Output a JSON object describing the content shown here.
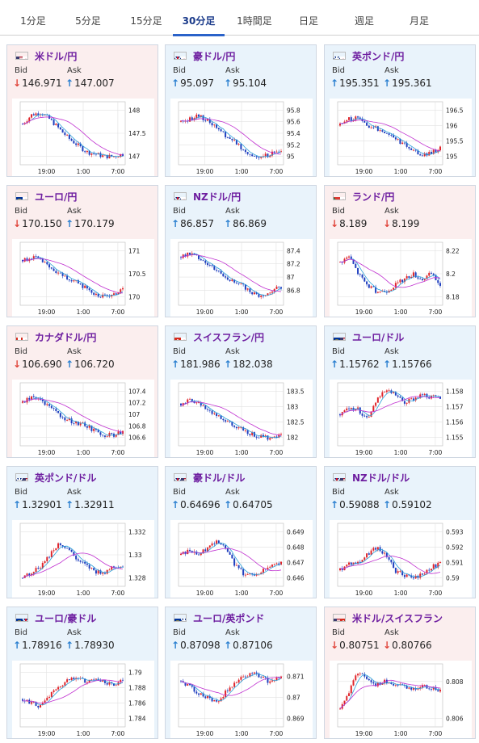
{
  "tabs": [
    {
      "label": "1分足",
      "active": false
    },
    {
      "label": "5分足",
      "active": false
    },
    {
      "label": "15分足",
      "active": false
    },
    {
      "label": "30分足",
      "active": true
    },
    {
      "label": "1時間足",
      "active": false
    },
    {
      "label": "日足",
      "active": false
    },
    {
      "label": "週足",
      "active": false
    },
    {
      "label": "月足",
      "active": false
    }
  ],
  "labels": {
    "bid": "Bid",
    "ask": "Ask"
  },
  "colors": {
    "up_arrow": "#2a7fd0",
    "down_arrow": "#e0443a",
    "pair_name": "#6e1ea0",
    "candle_up": "#e0242a",
    "candle_down": "#1f3fbf",
    "ma_short": "#2a9fd8",
    "ma_long": "#c030d0"
  },
  "x_ticks": [
    "19:00",
    "1:00",
    "7:00"
  ],
  "cards": [
    {
      "pair": "米ドル/円",
      "dir": "down",
      "bid": "146.971",
      "ask": "147.007",
      "bid_trend": "down",
      "ask_trend": "up",
      "flags": [
        "us",
        "jp"
      ],
      "y_ticks": [
        "148",
        "147.5",
        "147"
      ],
      "trend": [
        147.7,
        147.9,
        147.95,
        147.8,
        147.6,
        147.4,
        147.25,
        147.1,
        147.05,
        147.0,
        147.0,
        147.05
      ]
    },
    {
      "pair": "豪ドル/円",
      "dir": "up",
      "bid": "95.097",
      "ask": "95.104",
      "bid_trend": "up",
      "ask_trend": "up",
      "flags": [
        "au",
        "jp"
      ],
      "y_ticks": [
        "95.8",
        "95.6",
        "95.4",
        "95.2",
        "95"
      ],
      "trend": [
        95.6,
        95.65,
        95.7,
        95.6,
        95.5,
        95.35,
        95.25,
        95.1,
        95.0,
        95.0,
        95.05,
        95.1
      ]
    },
    {
      "pair": "英ポンド/円",
      "dir": "up",
      "bid": "195.351",
      "ask": "195.361",
      "bid_trend": "up",
      "ask_trend": "up",
      "flags": [
        "gb",
        "jp"
      ],
      "y_ticks": [
        "196.5",
        "196",
        "195.5",
        "195"
      ],
      "trend": [
        196.0,
        196.2,
        196.25,
        196.0,
        195.9,
        195.8,
        195.6,
        195.4,
        195.2,
        195.05,
        195.1,
        195.3
      ]
    },
    {
      "pair": "ユーロ/円",
      "dir": "down",
      "bid": "170.150",
      "ask": "170.179",
      "bid_trend": "down",
      "ask_trend": "up",
      "flags": [
        "eu",
        "jp"
      ],
      "y_ticks": [
        "171",
        "170.5",
        "170"
      ],
      "trend": [
        170.8,
        170.85,
        170.8,
        170.6,
        170.5,
        170.4,
        170.3,
        170.2,
        170.05,
        170.0,
        170.05,
        170.15
      ]
    },
    {
      "pair": "NZドル/円",
      "dir": "up",
      "bid": "86.857",
      "ask": "86.869",
      "bid_trend": "up",
      "ask_trend": "up",
      "flags": [
        "nz",
        "jp"
      ],
      "y_ticks": [
        "87.4",
        "87.2",
        "87",
        "86.8"
      ],
      "trend": [
        87.3,
        87.35,
        87.3,
        87.2,
        87.1,
        87.0,
        86.9,
        86.85,
        86.75,
        86.7,
        86.8,
        86.85
      ]
    },
    {
      "pair": "ランド/円",
      "dir": "down",
      "bid": "8.189",
      "ask": "8.199",
      "bid_trend": "down",
      "ask_trend": "down",
      "flags": [
        "za",
        "jp"
      ],
      "y_ticks": [
        "8.22",
        "8.2",
        "8.18"
      ],
      "trend": [
        8.21,
        8.215,
        8.2,
        8.19,
        8.185,
        8.185,
        8.19,
        8.195,
        8.2,
        8.195,
        8.2,
        8.19
      ]
    },
    {
      "pair": "カナダドル/円",
      "dir": "down",
      "bid": "106.690",
      "ask": "106.720",
      "bid_trend": "down",
      "ask_trend": "up",
      "flags": [
        "ca",
        "jp"
      ],
      "y_ticks": [
        "107.4",
        "107.2",
        "107",
        "106.8",
        "106.6"
      ],
      "trend": [
        107.2,
        107.3,
        107.25,
        107.1,
        107.0,
        106.9,
        106.85,
        106.8,
        106.7,
        106.65,
        106.65,
        106.7
      ]
    },
    {
      "pair": "スイスフラン/円",
      "dir": "up",
      "bid": "181.986",
      "ask": "182.038",
      "bid_trend": "up",
      "ask_trend": "up",
      "flags": [
        "ch",
        "jp"
      ],
      "y_ticks": [
        "183.5",
        "183",
        "182.5",
        "182"
      ],
      "trend": [
        183.1,
        183.2,
        183.1,
        182.9,
        182.7,
        182.5,
        182.35,
        182.2,
        182.1,
        182.0,
        182.0,
        182.05
      ]
    },
    {
      "pair": "ユーロ/ドル",
      "dir": "up",
      "bid": "1.15762",
      "ask": "1.15766",
      "bid_trend": "up",
      "ask_trend": "up",
      "flags": [
        "eu",
        "us"
      ],
      "y_ticks": [
        "1.158",
        "1.157",
        "1.156",
        "1.155"
      ],
      "trend": [
        1.1565,
        1.157,
        1.1568,
        1.1562,
        1.1575,
        1.158,
        1.1578,
        1.1572,
        1.1575,
        1.1578,
        1.1576,
        1.1576
      ]
    },
    {
      "pair": "英ポンド/ドル",
      "dir": "up",
      "bid": "1.32901",
      "ask": "1.32911",
      "bid_trend": "up",
      "ask_trend": "up",
      "flags": [
        "gb",
        "us"
      ],
      "y_ticks": [
        "1.332",
        "1.33",
        "1.328"
      ],
      "trend": [
        1.328,
        1.3285,
        1.329,
        1.33,
        1.331,
        1.3305,
        1.3295,
        1.329,
        1.3285,
        1.3285,
        1.329,
        1.329
      ]
    },
    {
      "pair": "豪ドル/ドル",
      "dir": "up",
      "bid": "0.64696",
      "ask": "0.64705",
      "bid_trend": "up",
      "ask_trend": "up",
      "flags": [
        "au",
        "us"
      ],
      "y_ticks": [
        "0.649",
        "0.648",
        "0.647",
        "0.646"
      ],
      "trend": [
        0.6475,
        0.6478,
        0.6475,
        0.648,
        0.6485,
        0.6478,
        0.6468,
        0.6462,
        0.6462,
        0.6465,
        0.6468,
        0.647
      ]
    },
    {
      "pair": "NZドル/ドル",
      "dir": "up",
      "bid": "0.59088",
      "ask": "0.59102",
      "bid_trend": "up",
      "ask_trend": "up",
      "flags": [
        "nz",
        "us"
      ],
      "y_ticks": [
        "0.593",
        "0.592",
        "0.591",
        "0.59"
      ],
      "trend": [
        0.5905,
        0.591,
        0.591,
        0.5915,
        0.592,
        0.5915,
        0.5905,
        0.5902,
        0.59,
        0.5902,
        0.5907,
        0.5909
      ]
    },
    {
      "pair": "ユーロ/豪ドル",
      "dir": "up",
      "bid": "1.78916",
      "ask": "1.78930",
      "bid_trend": "up",
      "ask_trend": "up",
      "flags": [
        "eu",
        "au"
      ],
      "y_ticks": [
        "1.79",
        "1.788",
        "1.786",
        "1.784"
      ],
      "trend": [
        1.7865,
        1.786,
        1.7855,
        1.787,
        1.788,
        1.789,
        1.7895,
        1.7885,
        1.7892,
        1.7888,
        1.7882,
        1.7891
      ]
    },
    {
      "pair": "ユーロ/英ポンド",
      "dir": "up",
      "bid": "0.87098",
      "ask": "0.87106",
      "bid_trend": "up",
      "ask_trend": "up",
      "flags": [
        "eu",
        "gb"
      ],
      "y_ticks": [
        "0.871",
        "0.87",
        "0.869"
      ],
      "trend": [
        0.8708,
        0.8705,
        0.8702,
        0.87,
        0.8698,
        0.8703,
        0.8707,
        0.871,
        0.8712,
        0.8709,
        0.8707,
        0.871
      ]
    },
    {
      "pair": "米ドル/スイスフラン",
      "dir": "down",
      "bid": "0.80751",
      "ask": "0.80766",
      "bid_trend": "down",
      "ask_trend": "down",
      "flags": [
        "us",
        "ch"
      ],
      "y_ticks": [
        "0.808",
        "0.806"
      ],
      "trend": [
        0.8065,
        0.8075,
        0.8085,
        0.8082,
        0.8078,
        0.808,
        0.8078,
        0.8077,
        0.8076,
        0.8078,
        0.8076,
        0.8075
      ]
    }
  ]
}
